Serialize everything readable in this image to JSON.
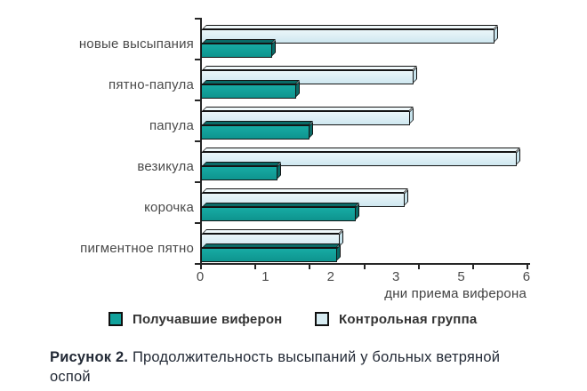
{
  "chart_data": {
    "type": "bar",
    "orientation": "horizontal",
    "style": "3d-bevel",
    "categories": [
      "новые высыпания",
      "пятно-папула",
      "папула",
      "везикула",
      "корочка",
      "пигментное пятно"
    ],
    "series": [
      {
        "name": "Получавшие виферон",
        "color": "#11a29c",
        "values": [
          1.3,
          1.75,
          2.0,
          1.4,
          2.85,
          2.5
        ]
      },
      {
        "name": "Контрольная группа",
        "color": "#d7ecf2",
        "values": [
          5.4,
          3.9,
          3.85,
          5.8,
          3.75,
          2.55
        ]
      }
    ],
    "xlabel": "дни приема виферона",
    "xlim": [
      0,
      6
    ],
    "x_tick_labels": [
      "0",
      "1",
      "2",
      "3",
      "5",
      "6"
    ],
    "x_tick_marks": 7,
    "grid": false,
    "legend_position": "bottom"
  },
  "legend": {
    "items": [
      {
        "label": "Получавшие виферон",
        "color": "#11a29c"
      },
      {
        "label": "Контрольная группа",
        "color": "#d7ecf2"
      }
    ]
  },
  "caption": {
    "prefix": "Рисунок 2.",
    "line1": "Продолжительность высыпаний у больных ветряной",
    "line2": "оспой"
  }
}
